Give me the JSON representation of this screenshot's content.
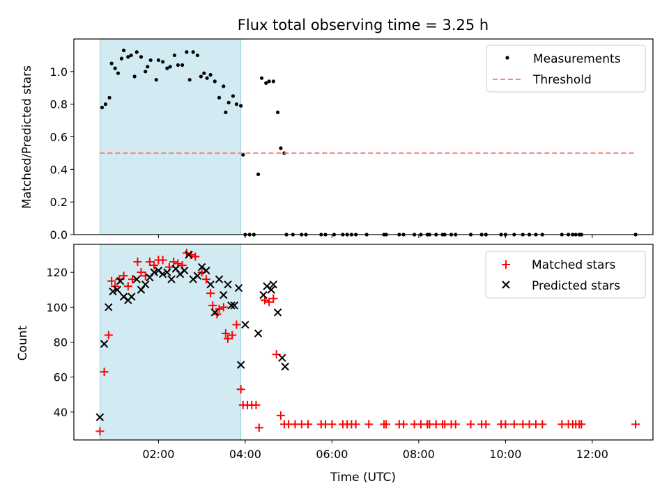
{
  "chart_data": [
    {
      "type": "scatter",
      "title": "Flux total observing time = 3.25 h",
      "xlabel": "",
      "ylabel": "Matched/Predicted stars",
      "xlim": [
        0.05,
        13.4
      ],
      "ylim": [
        0.0,
        1.2
      ],
      "x_ticks": [
        2,
        4,
        6,
        8,
        10,
        12
      ],
      "y_ticks": [
        0.0,
        0.2,
        0.4,
        0.6,
        0.8,
        1.0
      ],
      "y_tick_labels": [
        "0.0",
        "0.2",
        "0.4",
        "0.6",
        "0.8",
        "1.0"
      ],
      "shaded_interval": {
        "from": 0.65,
        "to": 3.9,
        "color": "#add8e6"
      },
      "legend": {
        "placement": "top-right",
        "entries": [
          "Measurements",
          "Threshold"
        ]
      },
      "series": [
        {
          "name": "Measurements",
          "marker": "dot",
          "color": "#000000",
          "points": [
            [
              0.7,
              0.78
            ],
            [
              0.78,
              0.8
            ],
            [
              0.87,
              0.84
            ],
            [
              0.92,
              1.05
            ],
            [
              1.0,
              1.02
            ],
            [
              1.07,
              0.99
            ],
            [
              1.15,
              1.08
            ],
            [
              1.2,
              1.13
            ],
            [
              1.3,
              1.09
            ],
            [
              1.37,
              1.1
            ],
            [
              1.45,
              0.97
            ],
            [
              1.5,
              1.12
            ],
            [
              1.6,
              1.09
            ],
            [
              1.7,
              1.0
            ],
            [
              1.75,
              1.03
            ],
            [
              1.82,
              1.07
            ],
            [
              1.95,
              0.95
            ],
            [
              2.0,
              1.07
            ],
            [
              2.1,
              1.06
            ],
            [
              2.2,
              1.02
            ],
            [
              2.27,
              1.03
            ],
            [
              2.37,
              1.1
            ],
            [
              2.45,
              1.04
            ],
            [
              2.55,
              1.04
            ],
            [
              2.65,
              1.12
            ],
            [
              2.72,
              0.95
            ],
            [
              2.8,
              1.12
            ],
            [
              2.9,
              1.1
            ],
            [
              2.98,
              0.97
            ],
            [
              3.05,
              0.99
            ],
            [
              3.12,
              0.96
            ],
            [
              3.2,
              0.98
            ],
            [
              3.3,
              0.94
            ],
            [
              3.4,
              0.84
            ],
            [
              3.5,
              0.91
            ],
            [
              3.55,
              0.75
            ],
            [
              3.62,
              0.81
            ],
            [
              3.72,
              0.85
            ],
            [
              3.8,
              0.8
            ],
            [
              3.9,
              0.79
            ],
            [
              3.95,
              0.49
            ],
            [
              4.3,
              0.37
            ],
            [
              4.38,
              0.96
            ],
            [
              4.48,
              0.93
            ],
            [
              4.55,
              0.94
            ],
            [
              4.65,
              0.94
            ],
            [
              4.75,
              0.75
            ],
            [
              4.82,
              0.53
            ],
            [
              4.9,
              0.5
            ],
            [
              4.0,
              0.0
            ],
            [
              4.1,
              0.0
            ],
            [
              4.2,
              0.0
            ],
            [
              4.95,
              0.0
            ],
            [
              5.1,
              0.0
            ],
            [
              5.3,
              0.0
            ],
            [
              5.4,
              0.0
            ],
            [
              5.75,
              0.0
            ],
            [
              5.85,
              0.0
            ],
            [
              6.05,
              0.0
            ],
            [
              6.25,
              0.0
            ],
            [
              6.35,
              0.0
            ],
            [
              6.45,
              0.0
            ],
            [
              6.55,
              0.0
            ],
            [
              6.8,
              0.0
            ],
            [
              7.2,
              0.0
            ],
            [
              7.25,
              0.0
            ],
            [
              7.55,
              0.0
            ],
            [
              7.65,
              0.0
            ],
            [
              7.9,
              0.0
            ],
            [
              8.05,
              0.0
            ],
            [
              8.2,
              0.0
            ],
            [
              8.25,
              0.0
            ],
            [
              8.4,
              0.0
            ],
            [
              8.55,
              0.0
            ],
            [
              8.6,
              0.0
            ],
            [
              8.75,
              0.0
            ],
            [
              8.85,
              0.0
            ],
            [
              9.2,
              0.0
            ],
            [
              9.45,
              0.0
            ],
            [
              9.55,
              0.0
            ],
            [
              9.9,
              0.0
            ],
            [
              10.0,
              0.0
            ],
            [
              10.2,
              0.0
            ],
            [
              10.4,
              0.0
            ],
            [
              10.55,
              0.0
            ],
            [
              10.7,
              0.0
            ],
            [
              10.85,
              0.0
            ],
            [
              11.3,
              0.0
            ],
            [
              11.45,
              0.0
            ],
            [
              11.55,
              0.0
            ],
            [
              11.62,
              0.0
            ],
            [
              11.7,
              0.0
            ],
            [
              11.75,
              0.0
            ],
            [
              13.0,
              0.0
            ]
          ]
        },
        {
          "name": "Threshold",
          "style": "dashed-line",
          "color": "#ff7f7f",
          "points": [
            [
              0.65,
              0.5
            ],
            [
              13.0,
              0.5
            ]
          ]
        }
      ]
    },
    {
      "type": "scatter",
      "title": "",
      "xlabel": "Time (UTC)",
      "ylabel": "Count",
      "xlim": [
        0.05,
        13.4
      ],
      "ylim": [
        24,
        136
      ],
      "x_ticks": [
        2,
        4,
        6,
        8,
        10,
        12
      ],
      "x_tick_labels": [
        "02:00",
        "04:00",
        "06:00",
        "08:00",
        "10:00",
        "12:00"
      ],
      "y_ticks": [
        40,
        60,
        80,
        100,
        120
      ],
      "y_tick_labels": [
        "40",
        "60",
        "80",
        "100",
        "120"
      ],
      "shaded_interval": {
        "from": 0.65,
        "to": 3.9,
        "color": "#add8e6"
      },
      "legend": {
        "placement": "top-right",
        "entries": [
          "Matched stars",
          "Predicted stars"
        ]
      },
      "series": [
        {
          "name": "Matched stars",
          "marker": "plus",
          "color": "#ff0000",
          "points": [
            [
              0.65,
              29
            ],
            [
              0.75,
              63
            ],
            [
              0.85,
              84
            ],
            [
              0.92,
              115
            ],
            [
              1.0,
              112
            ],
            [
              1.1,
              116
            ],
            [
              1.2,
              118
            ],
            [
              1.3,
              112
            ],
            [
              1.4,
              116
            ],
            [
              1.52,
              126
            ],
            [
              1.6,
              120
            ],
            [
              1.7,
              118
            ],
            [
              1.8,
              126
            ],
            [
              1.9,
              124
            ],
            [
              2.0,
              127
            ],
            [
              2.1,
              127
            ],
            [
              2.25,
              123
            ],
            [
              2.35,
              126
            ],
            [
              2.45,
              125
            ],
            [
              2.55,
              124
            ],
            [
              2.65,
              131
            ],
            [
              2.75,
              130
            ],
            [
              2.85,
              129
            ],
            [
              3.0,
              120
            ],
            [
              3.1,
              116
            ],
            [
              3.2,
              108
            ],
            [
              3.25,
              101
            ],
            [
              3.35,
              96
            ],
            [
              3.4,
              99
            ],
            [
              3.5,
              100
            ],
            [
              3.55,
              85
            ],
            [
              3.6,
              82
            ],
            [
              3.7,
              84
            ],
            [
              3.8,
              90
            ],
            [
              3.9,
              53
            ],
            [
              3.95,
              44
            ],
            [
              4.05,
              44
            ],
            [
              4.15,
              44
            ],
            [
              4.25,
              44
            ],
            [
              4.32,
              31
            ],
            [
              4.45,
              104
            ],
            [
              4.55,
              103
            ],
            [
              4.65,
              105
            ],
            [
              4.72,
              73
            ],
            [
              4.82,
              38
            ],
            [
              4.9,
              33
            ],
            [
              5.0,
              33
            ],
            [
              5.15,
              33
            ],
            [
              5.3,
              33
            ],
            [
              5.45,
              33
            ],
            [
              5.75,
              33
            ],
            [
              5.85,
              33
            ],
            [
              6.0,
              33
            ],
            [
              6.25,
              33
            ],
            [
              6.35,
              33
            ],
            [
              6.45,
              33
            ],
            [
              6.55,
              33
            ],
            [
              6.85,
              33
            ],
            [
              7.2,
              33
            ],
            [
              7.25,
              33
            ],
            [
              7.55,
              33
            ],
            [
              7.65,
              33
            ],
            [
              7.9,
              33
            ],
            [
              8.05,
              33
            ],
            [
              8.2,
              33
            ],
            [
              8.25,
              33
            ],
            [
              8.4,
              33
            ],
            [
              8.55,
              33
            ],
            [
              8.6,
              33
            ],
            [
              8.75,
              33
            ],
            [
              8.85,
              33
            ],
            [
              9.2,
              33
            ],
            [
              9.45,
              33
            ],
            [
              9.55,
              33
            ],
            [
              9.9,
              33
            ],
            [
              10.0,
              33
            ],
            [
              10.2,
              33
            ],
            [
              10.4,
              33
            ],
            [
              10.55,
              33
            ],
            [
              10.7,
              33
            ],
            [
              10.85,
              33
            ],
            [
              11.3,
              33
            ],
            [
              11.45,
              33
            ],
            [
              11.55,
              33
            ],
            [
              11.62,
              33
            ],
            [
              11.7,
              33
            ],
            [
              11.75,
              33
            ],
            [
              13.0,
              33
            ]
          ]
        },
        {
          "name": "Predicted stars",
          "marker": "x",
          "color": "#000000",
          "points": [
            [
              0.65,
              37
            ],
            [
              0.75,
              79
            ],
            [
              0.85,
              100
            ],
            [
              0.95,
              109
            ],
            [
              1.05,
              110
            ],
            [
              1.12,
              115
            ],
            [
              1.2,
              106
            ],
            [
              1.3,
              104
            ],
            [
              1.38,
              106
            ],
            [
              1.5,
              116
            ],
            [
              1.6,
              110
            ],
            [
              1.7,
              113
            ],
            [
              1.8,
              117
            ],
            [
              1.9,
              120
            ],
            [
              2.0,
              121
            ],
            [
              2.1,
              119
            ],
            [
              2.2,
              120
            ],
            [
              2.3,
              116
            ],
            [
              2.4,
              122
            ],
            [
              2.5,
              119
            ],
            [
              2.6,
              121
            ],
            [
              2.7,
              130
            ],
            [
              2.8,
              116
            ],
            [
              2.9,
              118
            ],
            [
              3.0,
              123
            ],
            [
              3.1,
              121
            ],
            [
              3.2,
              113
            ],
            [
              3.3,
              97
            ],
            [
              3.4,
              116
            ],
            [
              3.5,
              107
            ],
            [
              3.6,
              113
            ],
            [
              3.68,
              101
            ],
            [
              3.75,
              101
            ],
            [
              3.85,
              111
            ],
            [
              3.9,
              67
            ],
            [
              4.0,
              90
            ],
            [
              4.3,
              85
            ],
            [
              4.42,
              107
            ],
            [
              4.5,
              112
            ],
            [
              4.6,
              110
            ],
            [
              4.65,
              113
            ],
            [
              4.75,
              97
            ],
            [
              4.85,
              71
            ],
            [
              4.92,
              66
            ]
          ]
        }
      ]
    }
  ]
}
